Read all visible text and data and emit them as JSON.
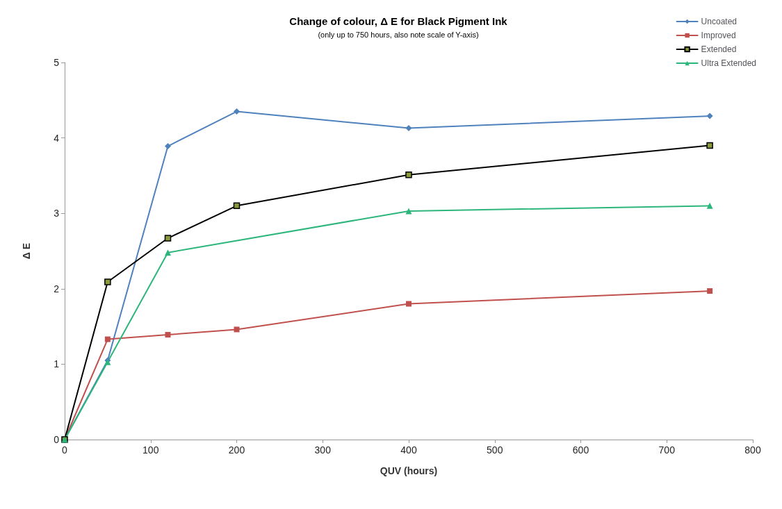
{
  "chart_data": {
    "type": "line",
    "title": "Change of colour, Δ E for Black Pigment Ink",
    "subtitle": "(only up to 750 hours, also note scale of Y-axis)",
    "xlabel": "QUV (hours)",
    "ylabel": "Δ E",
    "xlim": [
      0,
      800
    ],
    "xticks": [
      0,
      100,
      200,
      300,
      400,
      500,
      600,
      700,
      800
    ],
    "ylim": [
      0,
      5
    ],
    "yticks": [
      0,
      1,
      2,
      3,
      4,
      5
    ],
    "grid": false,
    "legend": "top right",
    "series": [
      {
        "name": "Uncoated",
        "color": "#4f81bd",
        "marker": "diamond",
        "x": [
          0,
          50,
          120,
          200,
          400,
          750
        ],
        "values": [
          0,
          1.05,
          3.89,
          4.35,
          4.13,
          4.29
        ]
      },
      {
        "name": "Improved",
        "color": "#c0504d",
        "marker": "square",
        "x": [
          0,
          50,
          120,
          200,
          400,
          750
        ],
        "values": [
          0,
          1.33,
          1.39,
          1.46,
          1.8,
          1.97
        ]
      },
      {
        "name": "Extended",
        "color": "#000000",
        "marker": "square",
        "x": [
          0,
          50,
          120,
          200,
          400,
          750
        ],
        "values": [
          0,
          2.09,
          2.67,
          3.1,
          3.51,
          3.9
        ]
      },
      {
        "name": "Ultra Extended",
        "color": "#2db67c",
        "marker": "triangle",
        "x": [
          0,
          50,
          120,
          400,
          750
        ],
        "values": [
          0,
          1.03,
          2.48,
          3.03,
          3.1
        ]
      }
    ]
  }
}
